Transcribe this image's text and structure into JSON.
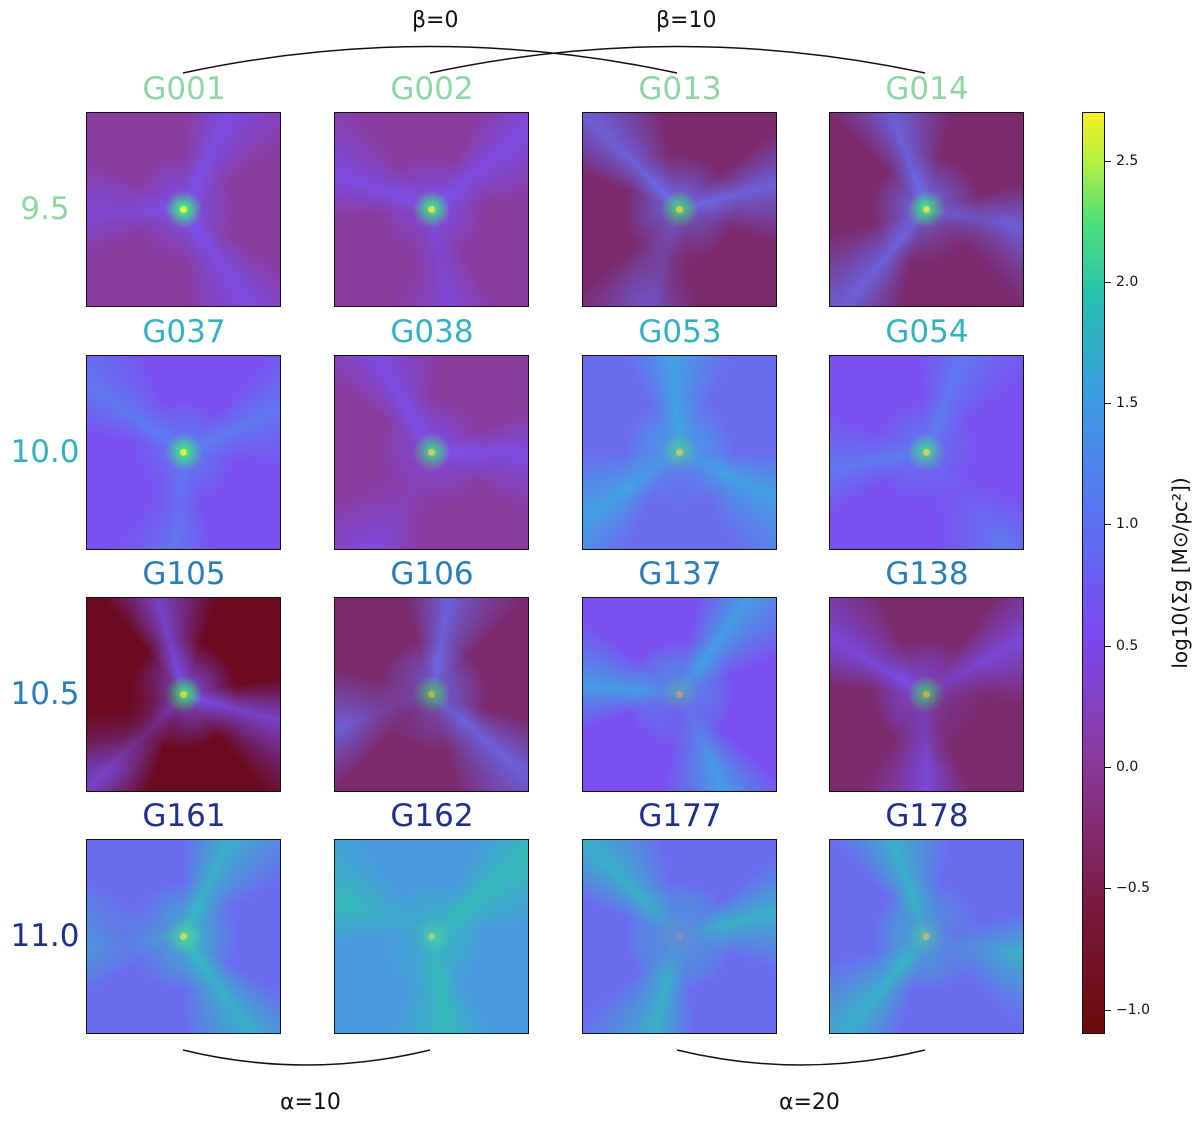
{
  "annotations": {
    "beta0": "β=0",
    "beta10": "β=10",
    "alpha10": "α=10",
    "alpha20": "α=20"
  },
  "rows": [
    {
      "label": "9.5",
      "color": "#8fd6a4",
      "panels": [
        "G001",
        "G002",
        "G013",
        "G014"
      ]
    },
    {
      "label": "10.0",
      "color": "#36b1c2",
      "panels": [
        "G037",
        "G038",
        "G053",
        "G054"
      ]
    },
    {
      "label": "10.5",
      "color": "#2a7db6",
      "panels": [
        "G105",
        "G106",
        "G137",
        "G138"
      ]
    },
    {
      "label": "11.0",
      "color": "#1f2f8c",
      "panels": [
        "G161",
        "G162",
        "G177",
        "G178"
      ]
    }
  ],
  "colorbar": {
    "label": "log10(Σg [M⊙/pc²])",
    "range": [
      -1.1,
      2.7
    ],
    "ticks": [
      "2.5",
      "2.0",
      "1.5",
      "1.0",
      "0.5",
      "0.0",
      "−0.5",
      "−1.0"
    ],
    "tick_values": [
      2.5,
      2.0,
      1.5,
      1.0,
      0.5,
      0.0,
      -0.5,
      -1.0
    ],
    "colormap_low": "#6b0a0a",
    "colormap_mid": "#7a48f0",
    "colormap_high": "#f6f020"
  }
}
